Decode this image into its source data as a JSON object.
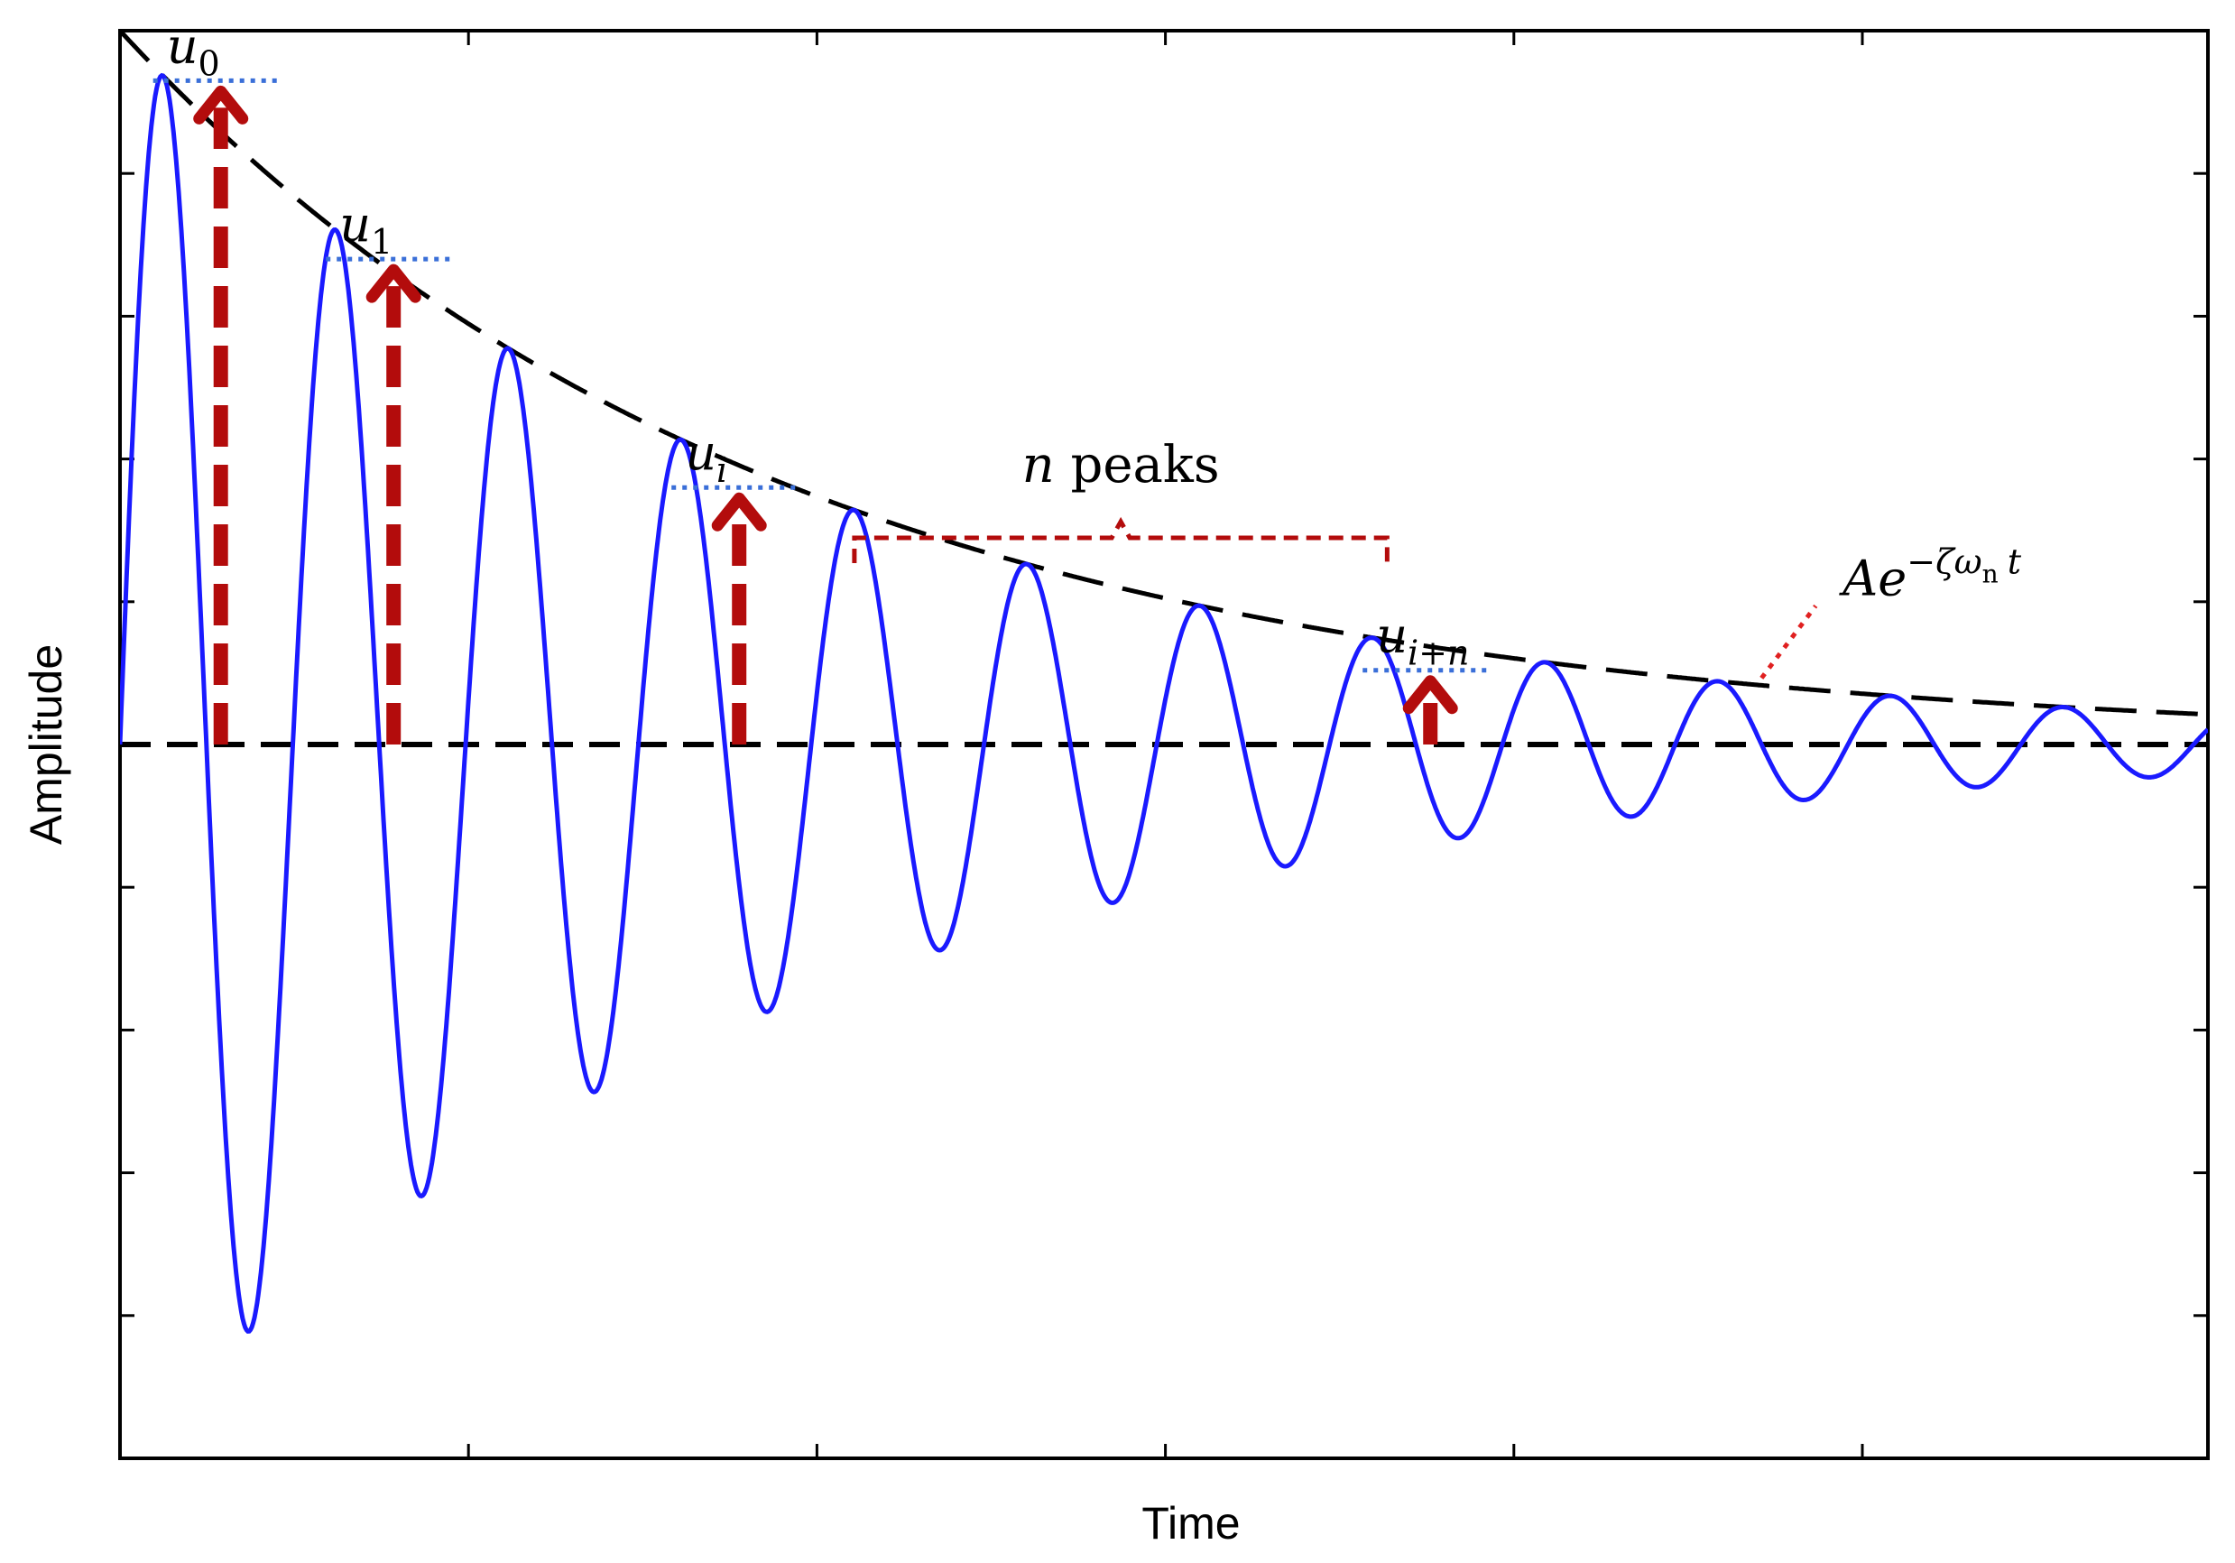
{
  "chart_data": {
    "type": "line",
    "title": "",
    "xlabel": "Time",
    "ylabel": "Amplitude",
    "xlim": [
      0,
      14.5
    ],
    "ylim": [
      -5,
      5
    ],
    "tick_labels_shown": false,
    "x_ticks": [
      2.42,
      4.84,
      7.26,
      9.68,
      12.1
    ],
    "y_ticks": [
      -4,
      -3,
      -2,
      -1,
      0,
      1,
      2,
      3,
      4
    ],
    "grid": false,
    "series": [
      {
        "style": "solid",
        "color": "#1a1aff",
        "formula": "A·e^(-ζωn·t)·sin(ωd·t)",
        "params": {
          "A": 5.0,
          "decay": 0.2184,
          "period": 1.2
        }
      }
    ],
    "envelope": {
      "label_prefix": "Ae",
      "exponent": "−ζω",
      "exponent_sub": "n",
      "exponent_tail": "t",
      "style": "dashed",
      "color": "#000000"
    },
    "baseline": {
      "y": 0,
      "style": "dashed",
      "color": "#000000"
    },
    "peak_markers": [
      {
        "base": "u",
        "sub": "0",
        "x": 0.7,
        "y": 4.65
      },
      {
        "base": "u",
        "sub": "1",
        "x": 1.9,
        "y": 3.4
      },
      {
        "base": "u",
        "sub": "i",
        "x": 4.3,
        "y": 1.8
      },
      {
        "base": "u",
        "sub": "i+n",
        "x": 9.1,
        "y": 0.52
      }
    ],
    "bracket": {
      "label_var": "n",
      "label_text": " peaks",
      "x_start": 5.1,
      "x_end": 8.8
    },
    "colors": {
      "signal": "#1a1aff",
      "arrows": "#b30c0c",
      "dotted": "#3a6fd8",
      "frame": "#000000"
    }
  }
}
